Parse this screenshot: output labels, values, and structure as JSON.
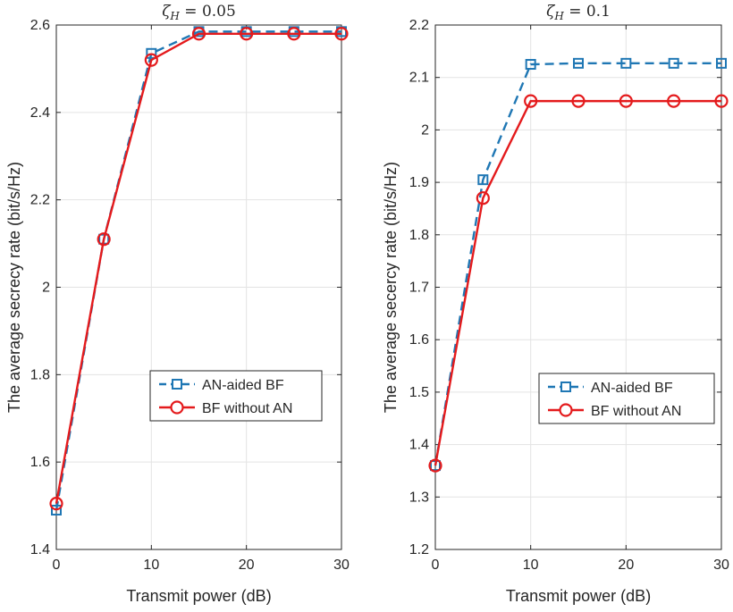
{
  "chart_data": [
    {
      "type": "line",
      "title": "ζ_H = 0.05",
      "title_symbol": "ζ",
      "title_sub": "H",
      "title_rest": " = 0.05",
      "xlabel": "Transmit power (dB)",
      "ylabel": "The average secrecy rate (bit/s/Hz)",
      "x": [
        0,
        5,
        10,
        15,
        20,
        25,
        30
      ],
      "xlim": [
        0,
        30
      ],
      "ylim": [
        1.4,
        2.6
      ],
      "xticks": [
        0,
        10,
        20,
        30
      ],
      "yticks": [
        1.4,
        1.6,
        1.8,
        2,
        2.2,
        2.4,
        2.6
      ],
      "xtick_labels": [
        "0",
        "10",
        "20",
        "30"
      ],
      "ytick_labels": [
        "1.4",
        "1.6",
        "1.8",
        "2",
        "2.2",
        "2.4",
        "2.6"
      ],
      "grid": true,
      "legend_position": "lower-right",
      "series": [
        {
          "name": "AN-aided BF",
          "values": [
            1.49,
            2.11,
            2.535,
            2.585,
            2.585,
            2.585,
            2.585
          ],
          "color": "#1f77b4",
          "line_style": "dashed",
          "marker": "square"
        },
        {
          "name": "BF without AN",
          "values": [
            1.505,
            2.11,
            2.52,
            2.58,
            2.58,
            2.58,
            2.58
          ],
          "color": "#e41a1c",
          "line_style": "solid",
          "marker": "circle"
        }
      ]
    },
    {
      "type": "line",
      "title": "ζ_H = 0.1",
      "title_symbol": "ζ",
      "title_sub": "H",
      "title_rest": " = 0.1",
      "xlabel": "Transmit power (dB)",
      "ylabel": "The average secercy rate (bit/s/Hz)",
      "x": [
        0,
        5,
        10,
        15,
        20,
        25,
        30
      ],
      "xlim": [
        0,
        30
      ],
      "ylim": [
        1.2,
        2.2
      ],
      "xticks": [
        0,
        10,
        20,
        30
      ],
      "yticks": [
        1.2,
        1.3,
        1.4,
        1.5,
        1.6,
        1.7,
        1.8,
        1.9,
        2,
        2.1,
        2.2
      ],
      "xtick_labels": [
        "0",
        "10",
        "20",
        "30"
      ],
      "ytick_labels": [
        "1.2",
        "1.3",
        "1.4",
        "1.5",
        "1.6",
        "1.7",
        "1.8",
        "1.9",
        "2",
        "2.1",
        "2.2"
      ],
      "grid": true,
      "legend_position": "lower-right",
      "series": [
        {
          "name": "AN-aided BF",
          "values": [
            1.36,
            1.905,
            2.125,
            2.127,
            2.127,
            2.127,
            2.127
          ],
          "color": "#1f77b4",
          "line_style": "dashed",
          "marker": "square"
        },
        {
          "name": "BF without AN",
          "values": [
            1.36,
            1.87,
            2.055,
            2.055,
            2.055,
            2.055,
            2.055
          ],
          "color": "#e41a1c",
          "line_style": "solid",
          "marker": "circle"
        }
      ]
    }
  ]
}
